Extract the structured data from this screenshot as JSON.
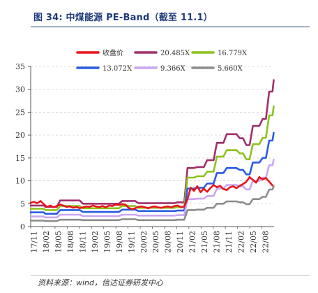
{
  "title": "图 34:  中煤能源 PE-Band（截至 11.1）",
  "source": "资料来源：wind，信达证券研发中心",
  "chart_data": {
    "type": "line",
    "ylim": [
      0,
      35
    ],
    "yticks": [
      0,
      5,
      10,
      15,
      20,
      25,
      30,
      35
    ],
    "x_start": "17/11",
    "x_end": "22/11",
    "xticks": [
      "17/11",
      "18/02",
      "18/05",
      "18/08",
      "18/11",
      "19/02",
      "19/05",
      "19/08",
      "19/11",
      "20/02",
      "20/05",
      "20/08",
      "20/11",
      "21/02",
      "21/05",
      "21/08",
      "21/11",
      "22/02",
      "22/05",
      "22/08"
    ],
    "grid": "horizontal dashed",
    "legend_position": "top",
    "series": [
      {
        "name": "收盘价",
        "color": "#e8141c",
        "values": [
          [
            0,
            5.2
          ],
          [
            1,
            5.4
          ],
          [
            2,
            5.1
          ],
          [
            3,
            5.6
          ],
          [
            4,
            4.9
          ],
          [
            5,
            4.3
          ],
          [
            6,
            4.6
          ],
          [
            7,
            4.2
          ],
          [
            8,
            4.5
          ],
          [
            9,
            4.8
          ],
          [
            10,
            4.6
          ],
          [
            11,
            4.3
          ],
          [
            12,
            4.4
          ],
          [
            13,
            4.1
          ],
          [
            14,
            4.3
          ],
          [
            15,
            4.0
          ],
          [
            16,
            4.2
          ],
          [
            17,
            4.4
          ],
          [
            18,
            4.3
          ],
          [
            19,
            4.6
          ],
          [
            20,
            4.4
          ],
          [
            21,
            4.3
          ],
          [
            22,
            4.5
          ],
          [
            23,
            4.2
          ],
          [
            24,
            4.6
          ],
          [
            25,
            4.5
          ],
          [
            26,
            4.8
          ],
          [
            27,
            4.7
          ],
          [
            28,
            4.9
          ],
          [
            29,
            4.8
          ],
          [
            30,
            4.1
          ],
          [
            31,
            3.8
          ],
          [
            32,
            4.0
          ],
          [
            33,
            4.3
          ],
          [
            34,
            4.4
          ],
          [
            35,
            4.2
          ],
          [
            36,
            4.0
          ],
          [
            37,
            4.3
          ],
          [
            38,
            4.4
          ],
          [
            39,
            4.2
          ],
          [
            40,
            4.1
          ],
          [
            41,
            4.3
          ],
          [
            42,
            4.4
          ],
          [
            43,
            4.2
          ],
          [
            44,
            4.5
          ],
          [
            45,
            4.6
          ],
          [
            46,
            4.2
          ],
          [
            47,
            4.4
          ],
          [
            48,
            6.0
          ],
          [
            49,
            8.5
          ],
          [
            50,
            7.8
          ],
          [
            51,
            8.8
          ],
          [
            52,
            7.5
          ],
          [
            53,
            8.3
          ],
          [
            54,
            7.6
          ],
          [
            55,
            8.4
          ],
          [
            56,
            9.1
          ],
          [
            57,
            8.6
          ],
          [
            58,
            8.9
          ],
          [
            59,
            8.2
          ],
          [
            60,
            8.0
          ],
          [
            61,
            8.6
          ],
          [
            62,
            8.8
          ],
          [
            63,
            8.4
          ],
          [
            64,
            8.9
          ],
          [
            65,
            9.3
          ],
          [
            66,
            9.8
          ],
          [
            67,
            10.8
          ],
          [
            68,
            10.2
          ],
          [
            69,
            9.6
          ],
          [
            70,
            10.8
          ],
          [
            71,
            10.3
          ],
          [
            72,
            10.6
          ],
          [
            73,
            9.8
          ],
          [
            74,
            9.0
          ]
        ]
      },
      {
        "name": "20.485X",
        "color": "#a0306a",
        "values": [
          [
            0,
            4.6
          ],
          [
            4,
            4.6
          ],
          [
            4.5,
            4.3
          ],
          [
            8,
            4.3
          ],
          [
            9,
            5.7
          ],
          [
            15,
            5.7
          ],
          [
            16,
            5.0
          ],
          [
            27,
            5.0
          ],
          [
            28,
            5.6
          ],
          [
            32,
            5.6
          ],
          [
            33,
            5.1
          ],
          [
            44,
            5.1
          ],
          [
            45,
            5.3
          ],
          [
            47,
            5.3
          ],
          [
            48,
            12.8
          ],
          [
            50,
            12.8
          ],
          [
            51,
            13.0
          ],
          [
            53,
            13.0
          ],
          [
            54,
            14.5
          ],
          [
            56,
            14.5
          ],
          [
            57,
            18.3
          ],
          [
            59,
            18.3
          ],
          [
            60,
            20.2
          ],
          [
            63,
            20.2
          ],
          [
            64,
            19.3
          ],
          [
            65,
            19.3
          ],
          [
            66,
            17.8
          ],
          [
            67,
            17.8
          ],
          [
            68,
            22.0
          ],
          [
            70,
            22.0
          ],
          [
            71,
            23.5
          ],
          [
            72,
            23.5
          ],
          [
            73,
            29.5
          ],
          [
            74,
            29.5
          ],
          [
            74.4,
            32.0
          ]
        ]
      },
      {
        "name": "16.779X",
        "color": "#8dc21f",
        "values": [
          [
            0,
            3.9
          ],
          [
            4,
            3.9
          ],
          [
            4.5,
            3.6
          ],
          [
            8,
            3.6
          ],
          [
            9,
            4.5
          ],
          [
            15,
            4.5
          ],
          [
            16,
            4.0
          ],
          [
            27,
            4.0
          ],
          [
            28,
            4.5
          ],
          [
            32,
            4.5
          ],
          [
            33,
            4.1
          ],
          [
            44,
            4.1
          ],
          [
            45,
            4.3
          ],
          [
            47,
            4.3
          ],
          [
            48,
            10.7
          ],
          [
            50,
            10.7
          ],
          [
            51,
            11.0
          ],
          [
            53,
            11.0
          ],
          [
            54,
            12.0
          ],
          [
            56,
            12.0
          ],
          [
            57,
            15.3
          ],
          [
            59,
            15.3
          ],
          [
            60,
            16.7
          ],
          [
            63,
            16.7
          ],
          [
            64,
            16.0
          ],
          [
            65,
            16.0
          ],
          [
            66,
            14.7
          ],
          [
            67,
            14.7
          ],
          [
            68,
            18.0
          ],
          [
            70,
            18.0
          ],
          [
            71,
            19.4
          ],
          [
            72,
            19.4
          ],
          [
            73,
            24.3
          ],
          [
            74,
            24.3
          ],
          [
            74.4,
            26.3
          ]
        ]
      },
      {
        "name": "13.072X",
        "color": "#2a5ce0",
        "values": [
          [
            0,
            3.1
          ],
          [
            4,
            3.1
          ],
          [
            4.5,
            2.8
          ],
          [
            8,
            2.8
          ],
          [
            9,
            3.6
          ],
          [
            15,
            3.6
          ],
          [
            16,
            3.2
          ],
          [
            27,
            3.2
          ],
          [
            28,
            3.7
          ],
          [
            32,
            3.7
          ],
          [
            33,
            3.4
          ],
          [
            44,
            3.4
          ],
          [
            45,
            3.5
          ],
          [
            47,
            3.5
          ],
          [
            48,
            8.3
          ],
          [
            50,
            8.3
          ],
          [
            51,
            8.5
          ],
          [
            53,
            8.5
          ],
          [
            54,
            9.4
          ],
          [
            56,
            9.4
          ],
          [
            57,
            11.7
          ],
          [
            59,
            11.7
          ],
          [
            60,
            12.8
          ],
          [
            63,
            12.8
          ],
          [
            64,
            12.4
          ],
          [
            65,
            12.4
          ],
          [
            66,
            11.4
          ],
          [
            67,
            11.4
          ],
          [
            68,
            14.0
          ],
          [
            70,
            14.0
          ],
          [
            71,
            15.0
          ],
          [
            72,
            15.0
          ],
          [
            73,
            18.8
          ],
          [
            74,
            18.8
          ],
          [
            74.4,
            20.5
          ]
        ]
      },
      {
        "name": "9.366X",
        "color": "#c9a6f2",
        "values": [
          [
            0,
            2.2
          ],
          [
            4,
            2.2
          ],
          [
            4.5,
            2.0
          ],
          [
            8,
            2.0
          ],
          [
            9,
            2.6
          ],
          [
            15,
            2.6
          ],
          [
            16,
            2.3
          ],
          [
            27,
            2.3
          ],
          [
            28,
            2.6
          ],
          [
            32,
            2.6
          ],
          [
            33,
            2.4
          ],
          [
            44,
            2.4
          ],
          [
            45,
            2.5
          ],
          [
            47,
            2.5
          ],
          [
            48,
            6.0
          ],
          [
            50,
            6.0
          ],
          [
            51,
            6.1
          ],
          [
            53,
            6.1
          ],
          [
            54,
            6.7
          ],
          [
            56,
            6.7
          ],
          [
            57,
            8.3
          ],
          [
            59,
            8.3
          ],
          [
            60,
            9.1
          ],
          [
            63,
            9.1
          ],
          [
            64,
            8.8
          ],
          [
            65,
            8.8
          ],
          [
            66,
            8.1
          ],
          [
            67,
            8.1
          ],
          [
            68,
            10.0
          ],
          [
            70,
            10.0
          ],
          [
            71,
            10.7
          ],
          [
            72,
            10.7
          ],
          [
            73,
            13.4
          ],
          [
            74,
            13.4
          ],
          [
            74.4,
            14.6
          ]
        ]
      },
      {
        "name": "5.660X",
        "color": "#8c8c8c",
        "values": [
          [
            0,
            1.3
          ],
          [
            4,
            1.3
          ],
          [
            4.5,
            1.2
          ],
          [
            8,
            1.2
          ],
          [
            9,
            1.5
          ],
          [
            15,
            1.5
          ],
          [
            16,
            1.4
          ],
          [
            27,
            1.4
          ],
          [
            28,
            1.6
          ],
          [
            32,
            1.6
          ],
          [
            33,
            1.4
          ],
          [
            44,
            1.4
          ],
          [
            45,
            1.5
          ],
          [
            47,
            1.5
          ],
          [
            48,
            3.6
          ],
          [
            50,
            3.6
          ],
          [
            51,
            3.7
          ],
          [
            53,
            3.7
          ],
          [
            54,
            4.1
          ],
          [
            56,
            4.1
          ],
          [
            57,
            5.0
          ],
          [
            59,
            5.0
          ],
          [
            60,
            5.5
          ],
          [
            63,
            5.5
          ],
          [
            64,
            5.3
          ],
          [
            65,
            5.3
          ],
          [
            66,
            4.9
          ],
          [
            67,
            4.9
          ],
          [
            68,
            6.0
          ],
          [
            70,
            6.0
          ],
          [
            71,
            6.5
          ],
          [
            72,
            6.5
          ],
          [
            73,
            8.1
          ],
          [
            74,
            8.1
          ],
          [
            74.4,
            8.8
          ]
        ]
      }
    ]
  }
}
